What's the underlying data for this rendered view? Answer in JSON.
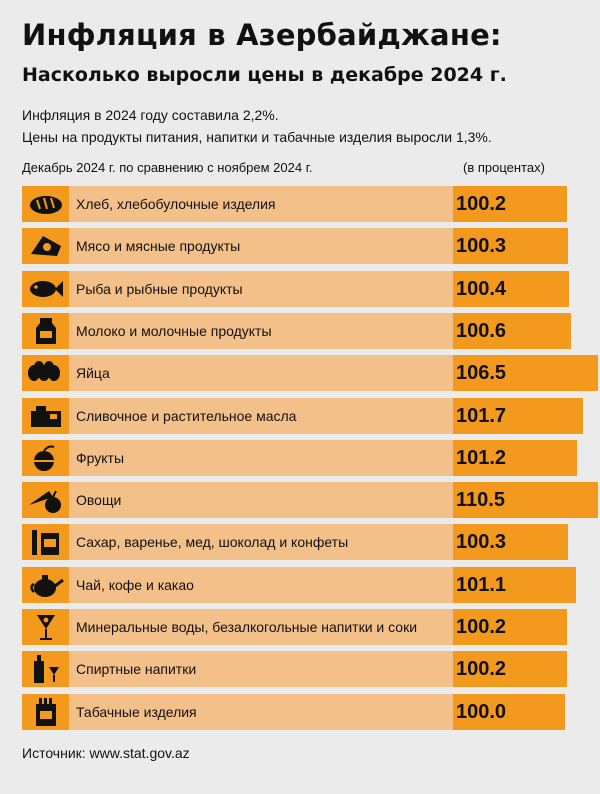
{
  "header": {
    "title": "Инфляция в Азербайджане:",
    "subtitle": "Насколько выросли цены в декабре 2024 г.",
    "note_line1": "Инфляция в 2024 году составила 2,2%.",
    "note_line2": "Цены на продукты питания, напитки и табачные изделия выросли 1,3%.",
    "period_label": "Декабрь 2024 г. по сравнению с ноябрем 2024 г.",
    "unit_label": "(в процентах)"
  },
  "colors": {
    "accent": "#f39a1e",
    "band": "#f3c08a",
    "background": "#ebebeb"
  },
  "chart_data": {
    "type": "bar",
    "orientation": "horizontal",
    "categories": [
      "Хлеб, хлебобулочные изделия",
      "Мясо и мясные продукты",
      "Рыба и рыбные продукты",
      "Молоко и молочные продукты",
      "Яйца",
      "Сливочное и растительное масла",
      "Фрукты",
      "Овощи",
      "Сахар, варенье, мед, шоколад и конфеты",
      "Чай, кофе и какао",
      "Минеральные воды, безалкогольные напитки и соки",
      "Спиртные напитки",
      "Табачные изделия"
    ],
    "values": [
      100.2,
      100.3,
      100.4,
      100.6,
      106.5,
      101.7,
      101.2,
      110.5,
      100.3,
      101.1,
      100.2,
      100.2,
      100.0
    ],
    "value_labels": [
      "100.2",
      "100.3",
      "100.4",
      "100.6",
      "106.5",
      "101.7",
      "101.2",
      "110.5",
      "100.3",
      "101.1",
      "100.2",
      "100.2",
      "100.0"
    ],
    "icons": [
      "bread-icon",
      "meat-icon",
      "fish-icon",
      "milk-icon",
      "eggs-icon",
      "butter-icon",
      "fruit-icon",
      "vegetables-icon",
      "sugar-jam-icon",
      "teapot-icon",
      "soft-drinks-icon",
      "alcohol-icon",
      "tobacco-icon"
    ]
  },
  "footer": {
    "source": "Источник: www.stat.gov.az"
  }
}
